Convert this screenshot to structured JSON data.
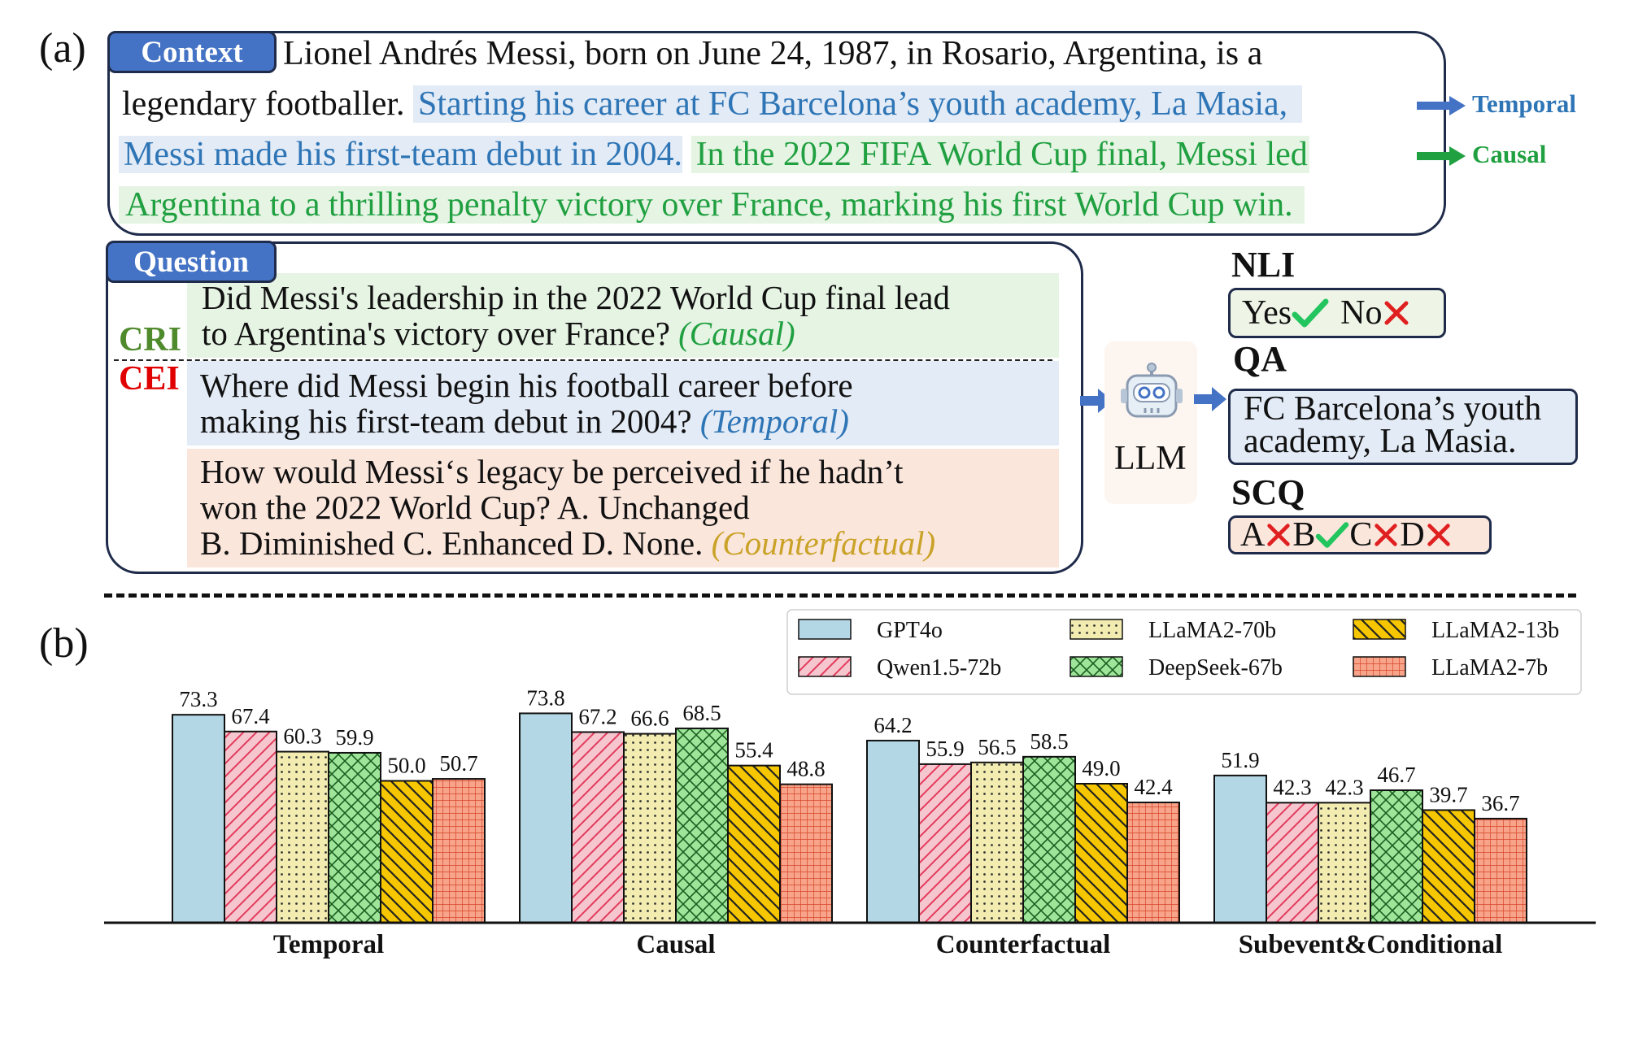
{
  "panel_a_label": "(a)",
  "panel_b_label": "(b)",
  "context": {
    "tag": "Context",
    "line1": "Lionel Andrés Messi, born on June 24, 1987, in Rosario, Argentina, is a",
    "line2_plain": "legendary footballer.",
    "line2_temporal": "Starting his career at FC Barcelona’s youth academy, La Masia,",
    "line3_temporal": "Messi made his first-team debut in 2004.",
    "line3_causal": "In the 2022 FIFA World Cup final, Messi led",
    "line4_causal": "Argentina to a thrilling penalty victory over France, marking his first World Cup win.",
    "temporal_label": "Temporal",
    "causal_label": "Causal"
  },
  "question": {
    "tag": "Question",
    "cri_label": "CRI",
    "cei_label": "CEI",
    "q1_line1": "Did Messi's leadership in the 2022 World Cup final lead",
    "q1_line2": "to Argentina's victory over France?",
    "q1_type": "(Causal)",
    "q2_line1": "Where did Messi begin his football career before",
    "q2_line2": "making his first-team debut in 2004?",
    "q2_type": "(Temporal)",
    "q3_line1": "How would Messi‘s legacy be perceived if he hadn’t",
    "q3_line2": "won the 2022 World Cup? A. Unchanged",
    "q3_line3": "B. Diminished  C. Enhanced D. None.",
    "q3_type": "(Counterfactual)"
  },
  "llm_label": "LLM",
  "tasks": {
    "nli_title": "NLI",
    "nli_yes": "Yes",
    "nli_no": "No",
    "qa_title": "QA",
    "qa_line1": "FC Barcelona’s youth",
    "qa_line2": "academy, La Masia.",
    "scq_title": "SCQ",
    "scq_a": "A",
    "scq_b": "B",
    "scq_c": "C",
    "scq_d": "D"
  },
  "colors": {
    "temporal": "#2e75b6",
    "causal": "#20a040",
    "counterfactual": "#c9a227",
    "cri": "#4f8a2c",
    "cei": "#e00000",
    "tag_blue": "#4472c4"
  },
  "chart_data": {
    "type": "bar",
    "categories": [
      "Temporal",
      "Causal",
      "Counterfactual",
      "Subevent&Conditional"
    ],
    "series": [
      {
        "name": "GPT4o",
        "values": [
          73.3,
          73.8,
          64.2,
          51.9
        ],
        "color": "#b4d7e6",
        "pattern": "none"
      },
      {
        "name": "Qwen1.5-72b",
        "values": [
          67.4,
          67.2,
          55.9,
          42.3
        ],
        "color": "#f6c6cf",
        "pattern": "diagonal"
      },
      {
        "name": "LLaMA2-70b",
        "values": [
          60.3,
          66.6,
          56.5,
          42.3
        ],
        "color": "#f3ecb0",
        "pattern": "dots"
      },
      {
        "name": "DeepSeek-67b",
        "values": [
          59.9,
          68.5,
          58.5,
          46.7
        ],
        "color": "#9ee59a",
        "pattern": "crosshatch"
      },
      {
        "name": "LLaMA2-13b",
        "values": [
          50.0,
          55.4,
          49.0,
          39.7
        ],
        "color": "#f6c700",
        "pattern": "backdiagonal"
      },
      {
        "name": "LLaMA2-7b",
        "values": [
          50.7,
          48.8,
          42.4,
          36.7
        ],
        "color": "#f7a48a",
        "pattern": "grid"
      }
    ],
    "ylim": [
      0,
      80
    ],
    "legend": "top-right"
  }
}
